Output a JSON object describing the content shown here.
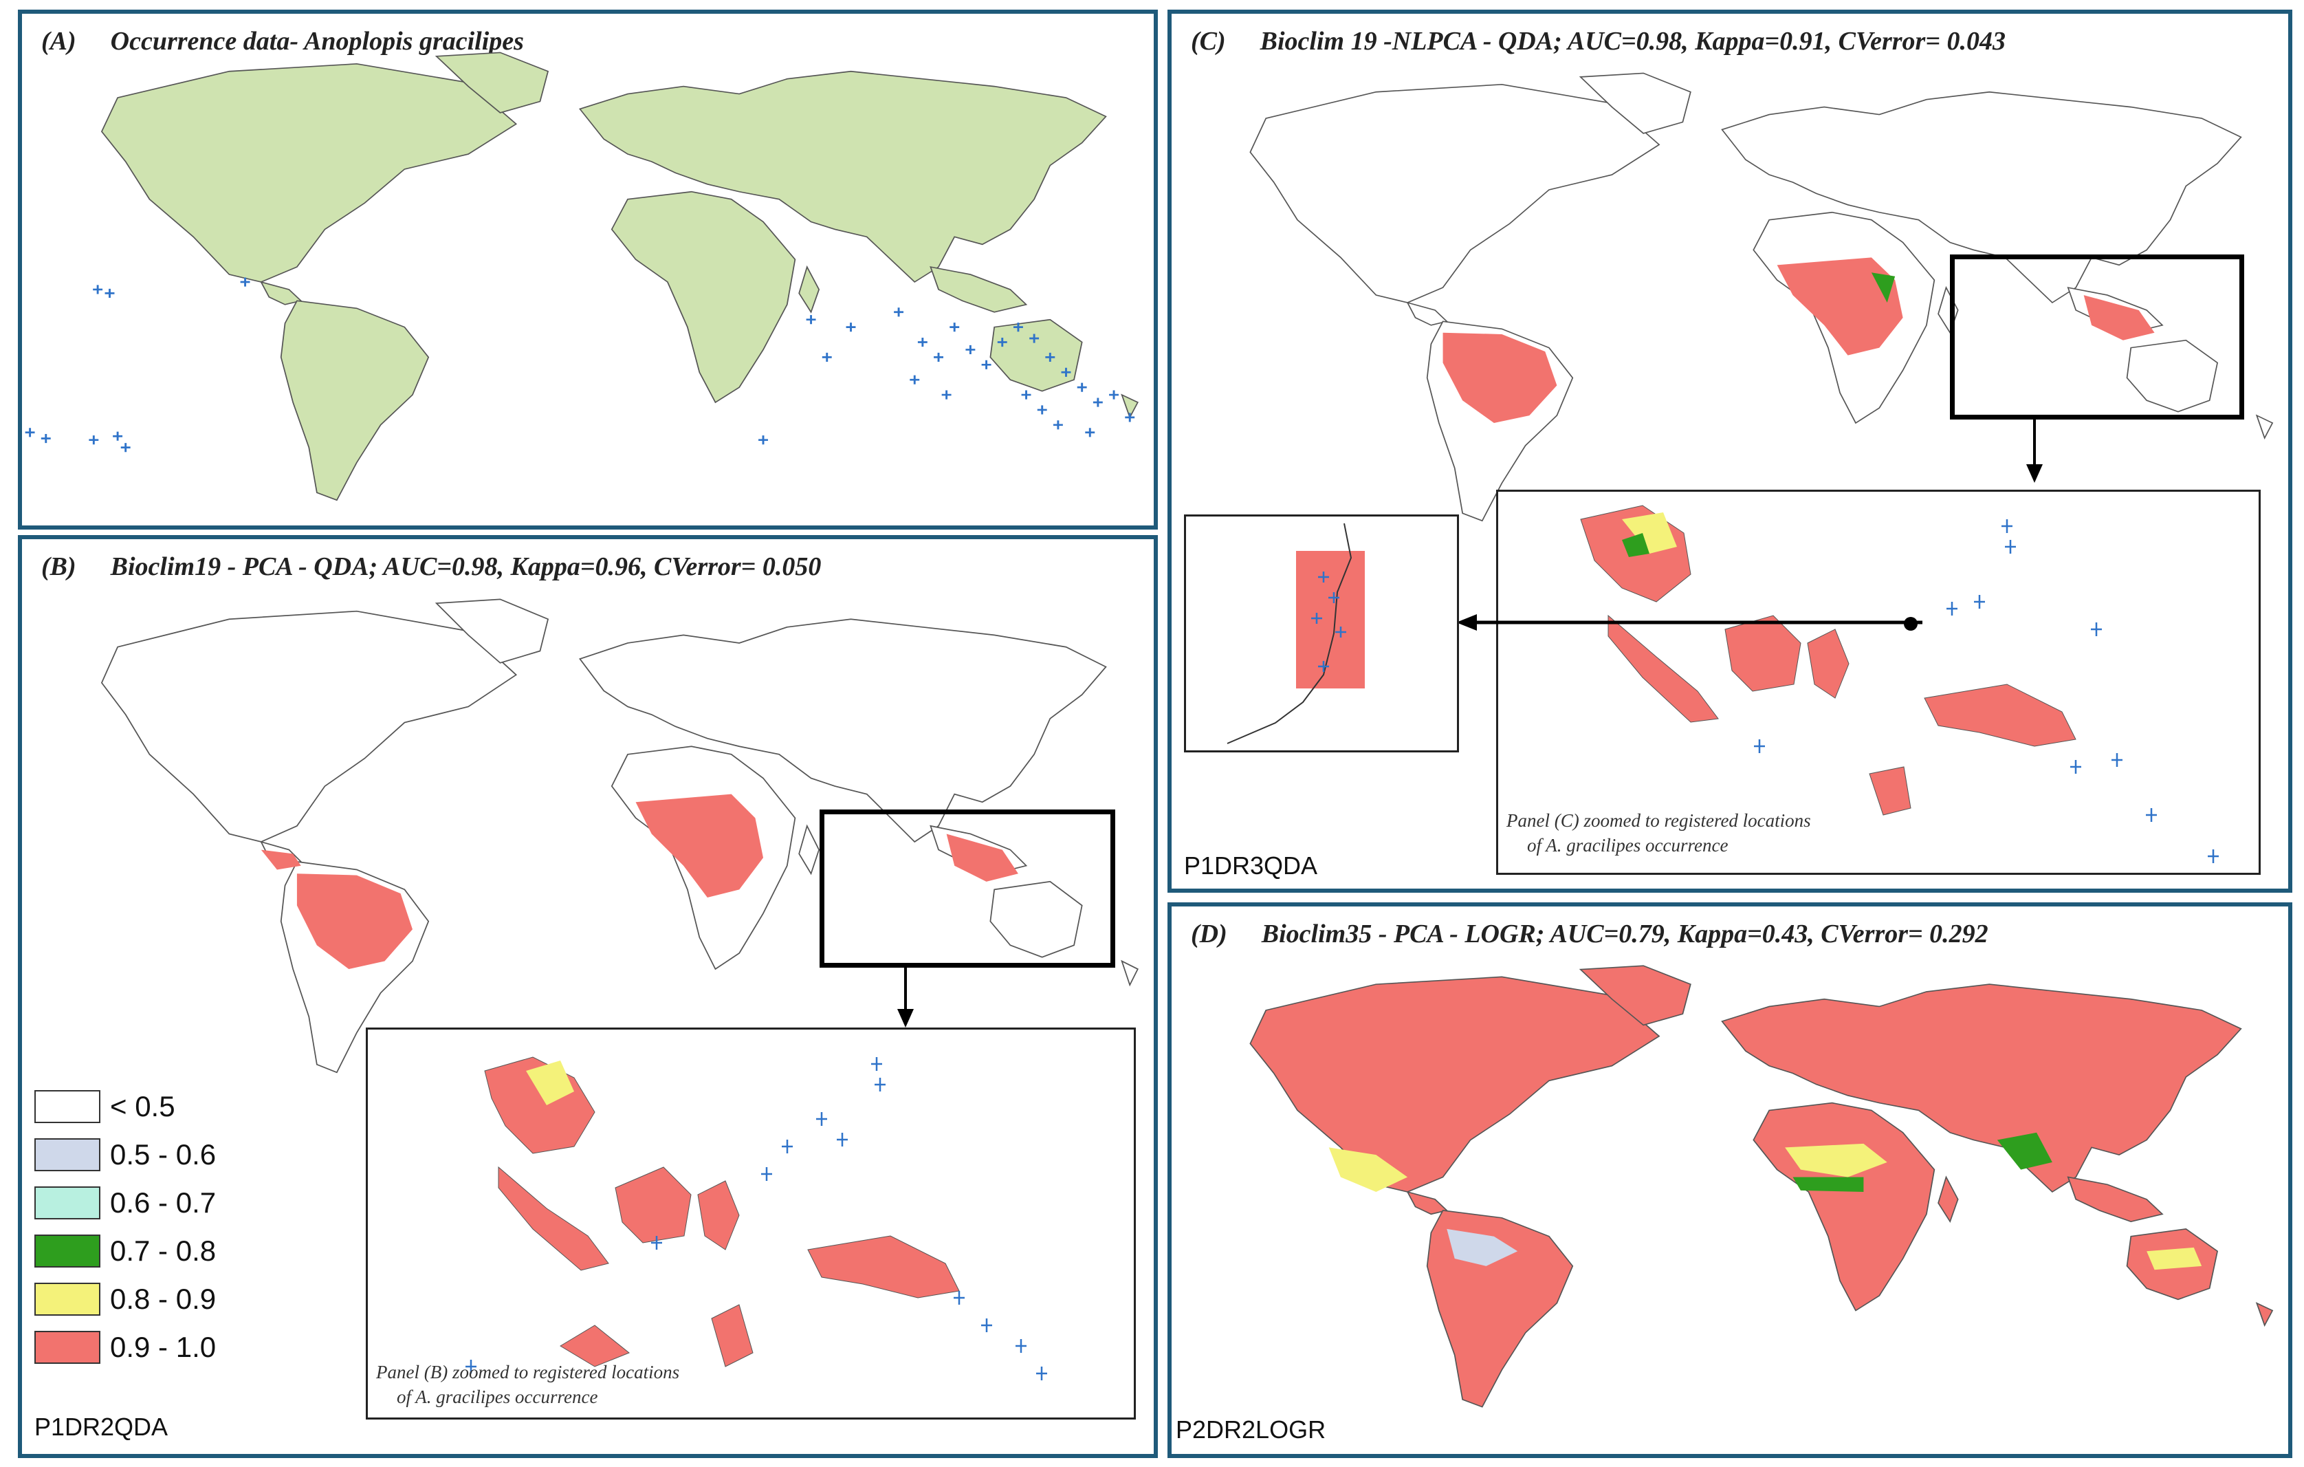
{
  "panels": {
    "a": {
      "label": "(A)",
      "title": "Occurrence data- Anoplopis gracilipes"
    },
    "b": {
      "label": "(B)",
      "title": "Bioclim19 - PCA - QDA; AUC=0.98, Kappa=0.96, CVerror= 0.050",
      "code": "P1DR2QDA",
      "inset_caption_1": "Panel (B) zoomed to registered locations",
      "inset_caption_2": "of A. gracilipes  occurrence"
    },
    "c": {
      "label": "(C)",
      "title": "Bioclim 19 -NLPCA - QDA; AUC=0.98, Kappa=0.91, CVerror= 0.043",
      "code": "P1DR3QDA",
      "inset_caption_1": "Panel (C) zoomed to registered locations",
      "inset_caption_2": "of A. gracilipes occurrence"
    },
    "d": {
      "label": "(D)",
      "title": "Bioclim35 - PCA - LOGR; AUC=0.79, Kappa=0.43, CVerror= 0.292",
      "code": "P2DR2LOGR"
    }
  },
  "legend": [
    {
      "label": "<  0.5",
      "color": "#ffffff"
    },
    {
      "label": "0.5 - 0.6",
      "color": "#cfd8ea"
    },
    {
      "label": "0.6 - 0.7",
      "color": "#b8f0e0"
    },
    {
      "label": "0.7 - 0.8",
      "color": "#2e9e1e"
    },
    {
      "label": "0.8 - 0.9",
      "color": "#f4f27a"
    },
    {
      "label": "0.9 - 1.0",
      "color": "#f2736e"
    }
  ],
  "colors": {
    "land": "#cfe3b0",
    "border": "#1f5a7a",
    "occurrence": "#2f73c9",
    "suitability_high": "#f2736e",
    "suitability_mid": "#f4f27a",
    "suitability_green": "#2e9e1e"
  },
  "icons": {
    "occurrence_marker": "plus-marker-icon",
    "arrow": "arrow-icon"
  }
}
